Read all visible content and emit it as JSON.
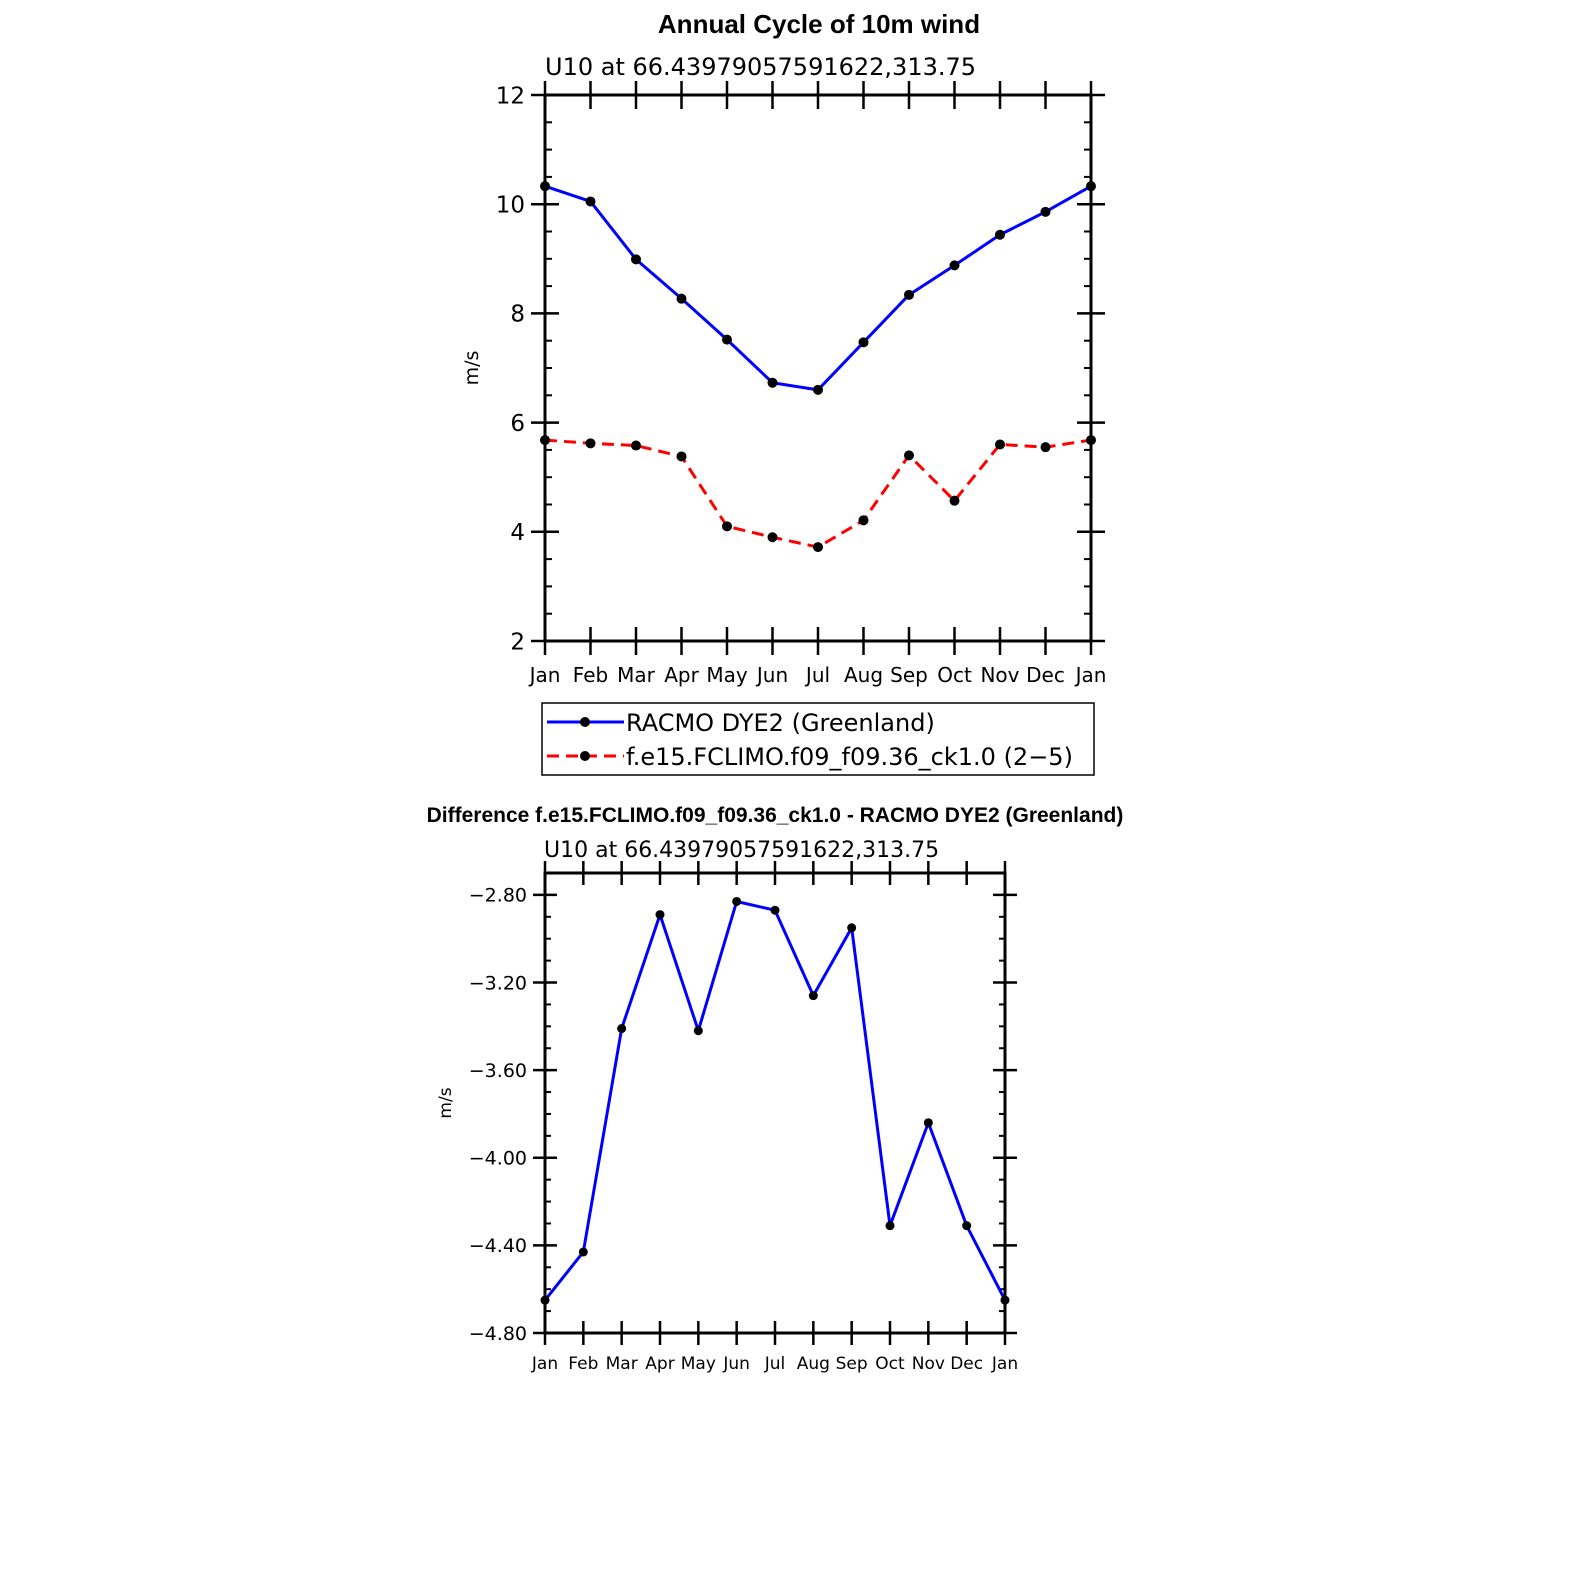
{
  "chart_data": [
    {
      "type": "line",
      "title": "Annual Cycle of 10m wind",
      "subtitle": "U10 at 66.43979057591622,313.75",
      "xlabel": "",
      "ylabel": "m/s",
      "categories": [
        "Jan",
        "Feb",
        "Mar",
        "Apr",
        "May",
        "Jun",
        "Jul",
        "Aug",
        "Sep",
        "Oct",
        "Nov",
        "Dec",
        "Jan"
      ],
      "ylim": [
        2,
        12
      ],
      "yticks": [
        2,
        4,
        6,
        8,
        10,
        12
      ],
      "ytick_labels": [
        "2",
        "4",
        "6",
        "8",
        "10",
        "12"
      ],
      "grid": false,
      "legend_position": "bottom",
      "series": [
        {
          "name": "RACMO DYE2 (Greenland)",
          "color": "#0000ff",
          "line_style": "solid",
          "values": [
            10.33,
            10.05,
            8.99,
            8.27,
            7.52,
            6.73,
            6.6,
            7.47,
            8.34,
            8.88,
            9.44,
            9.86,
            10.33
          ]
        },
        {
          "name": "f.e15.FCLIMO.f09_f09.36_ck1.0 (2−5)",
          "color": "#ff0000",
          "line_style": "dashed",
          "values": [
            5.68,
            5.62,
            5.58,
            5.38,
            4.1,
            3.9,
            3.72,
            4.21,
            5.4,
            4.57,
            5.6,
            5.55,
            5.68
          ]
        }
      ]
    },
    {
      "type": "line",
      "title": "Difference f.e15.FCLIMO.f09_f09.36_ck1.0 - RACMO DYE2 (Greenland)",
      "subtitle": "U10 at 66.43979057591622,313.75",
      "xlabel": "",
      "ylabel": "m/s",
      "categories": [
        "Jan",
        "Feb",
        "Mar",
        "Apr",
        "May",
        "Jun",
        "Jul",
        "Aug",
        "Sep",
        "Oct",
        "Nov",
        "Dec",
        "Jan"
      ],
      "ylim": [
        -4.8,
        -2.7
      ],
      "yticks": [
        -4.8,
        -4.4,
        -4.0,
        -3.6,
        -3.2,
        -2.8
      ],
      "ytick_labels": [
        "−4.80",
        "−4.40",
        "−4.00",
        "−3.60",
        "−3.20",
        "−2.80"
      ],
      "grid": false,
      "series": [
        {
          "name": "Difference",
          "color": "#0000ff",
          "line_style": "solid",
          "values": [
            -4.65,
            -4.43,
            -3.41,
            -2.89,
            -3.42,
            -2.83,
            -2.87,
            -3.26,
            -2.95,
            -4.31,
            -3.84,
            -4.31,
            -4.65
          ]
        }
      ]
    }
  ]
}
